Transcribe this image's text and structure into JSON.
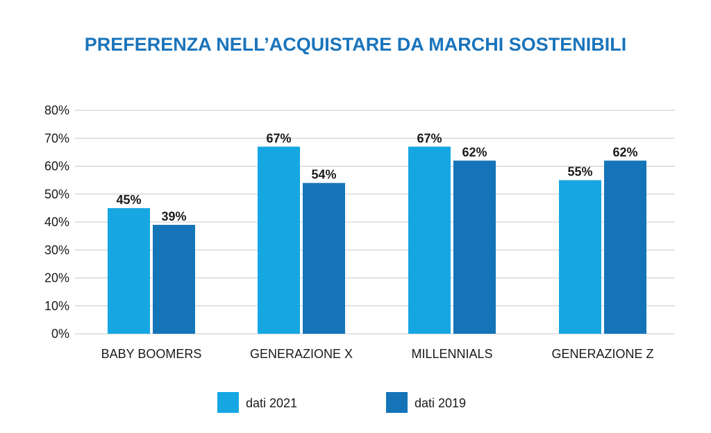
{
  "chart_data": {
    "type": "bar",
    "title": "PREFERENZA NELL’ACQUISTARE DA MARCHI SOSTENIBILI",
    "categories": [
      "BABY BOOMERS",
      "GENERAZIONE X",
      "MILLENNIALS",
      "GENERAZIONE Z"
    ],
    "series": [
      {
        "name": "dati 2021",
        "values": [
          45,
          67,
          67,
          55
        ],
        "labels": [
          "45%",
          "67%",
          "67%",
          "55%"
        ],
        "color": "#16a7e2"
      },
      {
        "name": "dati 2019",
        "values": [
          39,
          54,
          62,
          62
        ],
        "labels": [
          "39%",
          "54%",
          "62%",
          "62%"
        ],
        "color": "#1574b8"
      }
    ],
    "y_ticks": [
      "0%",
      "10%",
      "20%",
      "30%",
      "40%",
      "50%",
      "60%",
      "70%",
      "80%"
    ],
    "ylim": [
      0,
      80
    ],
    "xlabel": "",
    "ylabel": "",
    "grid": true,
    "legend_position": "bottom-center",
    "colors": {
      "title": "#1a74bb",
      "grid": "#c8c8c8",
      "text": "#1a1a1a"
    }
  }
}
